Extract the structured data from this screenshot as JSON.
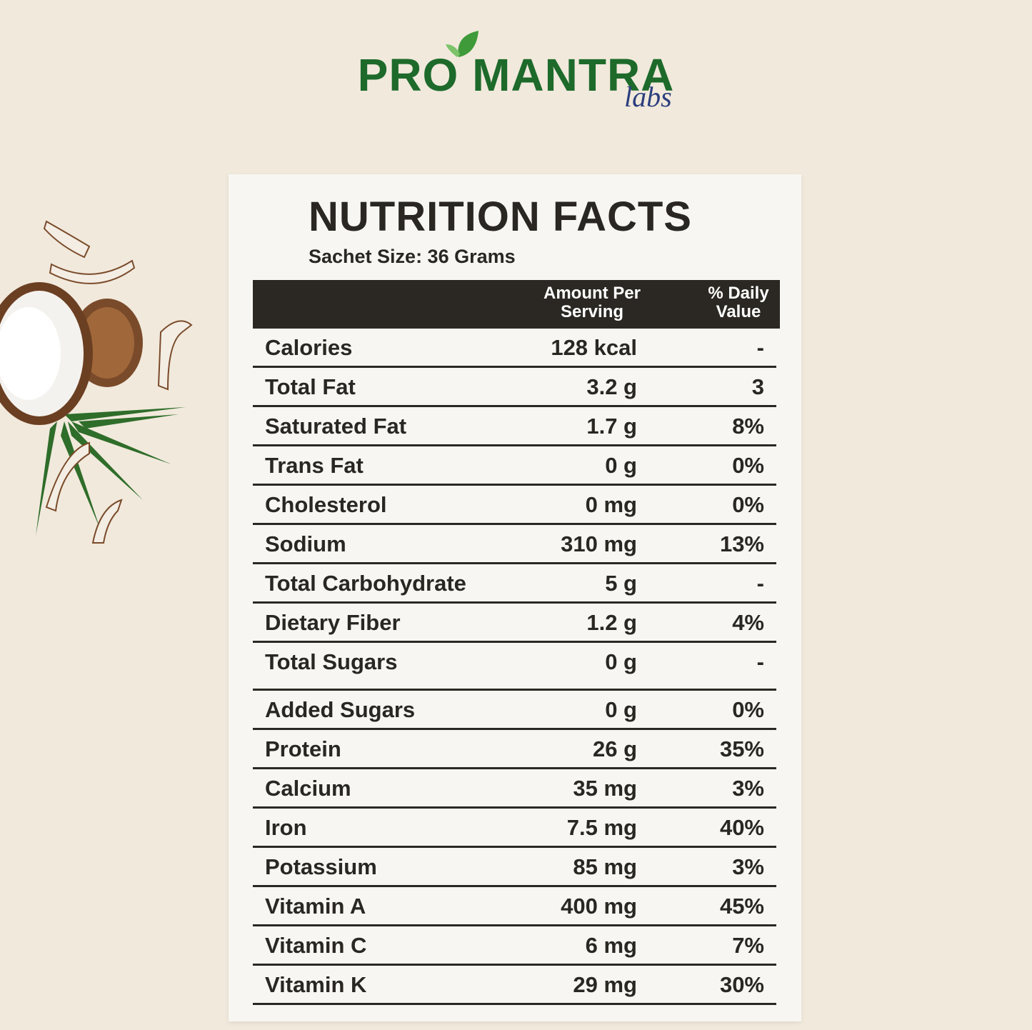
{
  "logo": {
    "brand": "PRO MANTRA",
    "sub": "labs"
  },
  "title": "NUTRITION FACTS",
  "serving": "Sachet Size: 36 Grams",
  "table": {
    "header": [
      "Amount Per Serving",
      "% Daily Value"
    ],
    "rows": [
      [
        "Calories",
        "128 kcal",
        "-"
      ],
      [
        "Total Fat",
        "3.2 g",
        "3"
      ],
      [
        "Saturated Fat",
        "1.7 g",
        "8%"
      ],
      [
        "Trans Fat",
        "0 g",
        "0%"
      ],
      [
        "Cholesterol",
        "0 mg",
        "0%"
      ],
      [
        "Sodium",
        "310 mg",
        "13%"
      ],
      [
        "Total Carbohydrate",
        "5 g",
        "-"
      ],
      [
        "Dietary Fiber",
        "1.2 g",
        "4%"
      ],
      [
        "Total Sugars",
        "0 g",
        "-"
      ],
      [
        "Added Sugars",
        "0 g",
        "0%"
      ],
      [
        "Protein",
        "26 g",
        "35%"
      ],
      [
        "Calcium",
        "35 mg",
        "3%"
      ],
      [
        "Iron",
        "7.5 mg",
        "40%"
      ],
      [
        "Potassium",
        "85 mg",
        "3%"
      ],
      [
        "Vitamin A",
        "400 mg",
        "45%"
      ],
      [
        "Vitamin C",
        "6 mg",
        "7%"
      ],
      [
        "Vitamin K",
        "29 mg",
        "30%"
      ]
    ]
  }
}
